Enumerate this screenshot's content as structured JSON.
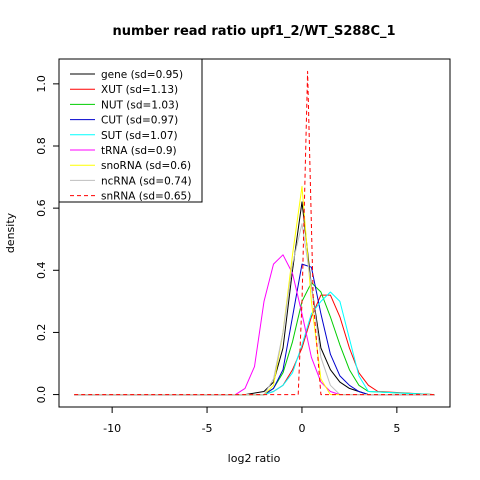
{
  "chart_data": {
    "type": "line",
    "title": "number read ratio upf1_2/WT_S288C_1",
    "xlabel": "log2 ratio",
    "ylabel": "density",
    "xlim": [
      -12.8,
      7.8
    ],
    "ylim": [
      -0.04,
      1.08
    ],
    "x_ticks": [
      -10,
      -5,
      0,
      5
    ],
    "x_tick_labels": [
      "-10",
      "-5",
      "0",
      "5"
    ],
    "y_ticks": [
      0.0,
      0.2,
      0.4,
      0.6,
      0.8,
      1.0
    ],
    "y_tick_labels": [
      "0.0",
      "0.2",
      "0.4",
      "0.6",
      "0.8",
      "1.0"
    ],
    "grid": false,
    "legend_position": "top-left",
    "series": [
      {
        "name": "gene (sd=0.95)",
        "color": "#000000",
        "dash": "solid",
        "x": [
          -12,
          -3,
          -2,
          -1.5,
          -1,
          -0.5,
          0,
          0.5,
          1,
          1.5,
          2,
          2.5,
          3,
          3.5,
          7
        ],
        "y": [
          0,
          0,
          0.01,
          0.04,
          0.15,
          0.4,
          0.62,
          0.35,
          0.15,
          0.08,
          0.04,
          0.02,
          0.01,
          0,
          0
        ]
      },
      {
        "name": "XUT (sd=1.13)",
        "color": "#ff0000",
        "dash": "solid",
        "x": [
          -12,
          -2,
          -1.5,
          -1,
          -0.5,
          0,
          0.5,
          1,
          1.5,
          2,
          2.5,
          3,
          3.5,
          4,
          7
        ],
        "y": [
          0,
          0,
          0.01,
          0.03,
          0.08,
          0.15,
          0.25,
          0.32,
          0.32,
          0.25,
          0.15,
          0.07,
          0.03,
          0.01,
          0
        ]
      },
      {
        "name": "NUT (sd=1.03)",
        "color": "#00cd00",
        "dash": "solid",
        "x": [
          -12,
          -2,
          -1.5,
          -1,
          -0.5,
          0,
          0.5,
          1,
          1.5,
          2,
          2.5,
          3,
          3.5,
          7
        ],
        "y": [
          0,
          0,
          0.02,
          0.07,
          0.17,
          0.3,
          0.36,
          0.33,
          0.25,
          0.16,
          0.08,
          0.03,
          0.01,
          0
        ]
      },
      {
        "name": "CUT (sd=0.97)",
        "color": "#0000cd",
        "dash": "solid",
        "x": [
          -12,
          -2,
          -1.5,
          -1,
          -0.5,
          0,
          0.5,
          1,
          1.5,
          2,
          2.5,
          3,
          3.5,
          7
        ],
        "y": [
          0,
          0,
          0.02,
          0.08,
          0.25,
          0.42,
          0.41,
          0.26,
          0.13,
          0.06,
          0.03,
          0.01,
          0,
          0
        ]
      },
      {
        "name": "SUT (sd=1.07)",
        "color": "#00ffff",
        "dash": "solid",
        "x": [
          -12,
          -2,
          -1.5,
          -1,
          -0.5,
          0,
          0.5,
          1,
          1.5,
          2,
          2.5,
          3,
          3.5,
          7
        ],
        "y": [
          0,
          0,
          0.01,
          0.03,
          0.07,
          0.16,
          0.26,
          0.3,
          0.33,
          0.3,
          0.18,
          0.06,
          0.01,
          0
        ]
      },
      {
        "name": "tRNA (sd=0.9)",
        "color": "#ff00ff",
        "dash": "solid",
        "x": [
          -12,
          -3.5,
          -3,
          -2.5,
          -2,
          -1.5,
          -1,
          -0.5,
          0,
          0.5,
          1,
          1.5,
          2,
          7
        ],
        "y": [
          0,
          0,
          0.02,
          0.09,
          0.3,
          0.42,
          0.45,
          0.39,
          0.26,
          0.12,
          0.04,
          0.01,
          0,
          0
        ]
      },
      {
        "name": "snoRNA (sd=0.6)",
        "color": "#ffff00",
        "dash": "solid",
        "x": [
          -12,
          -2,
          -1.5,
          -1,
          -0.5,
          0,
          0.5,
          1,
          1.5,
          7
        ],
        "y": [
          0,
          0,
          0.03,
          0.2,
          0.45,
          0.67,
          0.3,
          0.05,
          0,
          0
        ]
      },
      {
        "name": "ncRNA (sd=0.74)",
        "color": "#bebebe",
        "dash": "solid",
        "x": [
          -12,
          -2,
          -1.5,
          -1,
          -0.5,
          0,
          0.5,
          1,
          1.5,
          2,
          7
        ],
        "y": [
          0,
          0,
          0.05,
          0.2,
          0.42,
          0.55,
          0.35,
          0.12,
          0.03,
          0,
          0
        ]
      },
      {
        "name": "snRNA (sd=0.65)",
        "color": "#ff0000",
        "dash": "dashed",
        "x": [
          -12,
          -0.2,
          0,
          0.3,
          0.6,
          1,
          7
        ],
        "y": [
          0,
          0,
          0.3,
          1.04,
          0.3,
          0,
          0
        ]
      }
    ]
  }
}
